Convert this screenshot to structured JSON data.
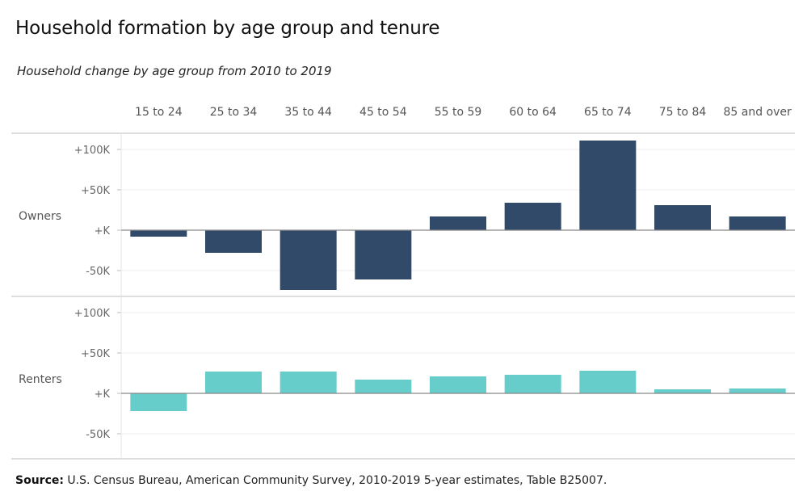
{
  "title": "Household formation by age group and tenure",
  "subtitle": "Household change by age group from 2010 to 2019",
  "source": {
    "label": "Source:",
    "text": "U.S. Census Bureau, American Community Survey, 2010-2019 5-year estimates, Table B25007."
  },
  "colors": {
    "owners": "#324A69",
    "renters": "#66CDCB",
    "grid": "#ECECEC",
    "divider": "#BBBBBB",
    "zero": "#888888"
  },
  "chart_data": {
    "type": "bar",
    "categories": [
      "15 to 24",
      "25 to 34",
      "35 to 44",
      "45 to 54",
      "55 to 59",
      "60 to 64",
      "65 to 74",
      "75 to 84",
      "85 and over"
    ],
    "ylim": [
      -70000,
      120000
    ],
    "yticks": [
      {
        "value": 100000,
        "label": "+100K"
      },
      {
        "value": 50000,
        "label": "+50K"
      },
      {
        "value": 0,
        "label": "+K"
      },
      {
        "value": -50000,
        "label": "-50K"
      }
    ],
    "grid": true,
    "series": [
      {
        "name": "Owners",
        "values": [
          -8000,
          -28000,
          -74000,
          -61000,
          17000,
          34000,
          111000,
          31000,
          17000
        ]
      },
      {
        "name": "Renters",
        "values": [
          -22000,
          27000,
          27000,
          17000,
          21000,
          23000,
          28000,
          5000,
          6000
        ]
      }
    ]
  }
}
